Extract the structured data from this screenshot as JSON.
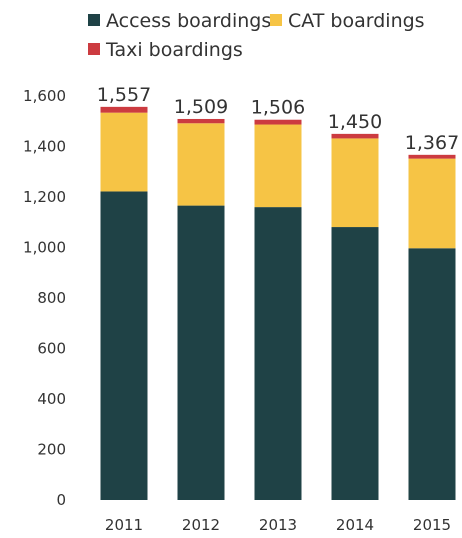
{
  "chart_data": {
    "type": "bar",
    "stacked": true,
    "title": "",
    "xlabel": "",
    "ylabel": "",
    "categories": [
      "2011",
      "2012",
      "2013",
      "2014",
      "2015"
    ],
    "series": [
      {
        "name": "Access boardings",
        "color": "#1f4246",
        "values": [
          1222,
          1166,
          1160,
          1081,
          997
        ]
      },
      {
        "name": "CAT boardings",
        "color": "#f6c445",
        "values": [
          312,
          326,
          327,
          351,
          355
        ]
      },
      {
        "name": "Taxi boardings",
        "color": "#cc3b40",
        "values": [
          23,
          17,
          19,
          18,
          15
        ]
      }
    ],
    "totals": [
      "1,557",
      "1,509",
      "1,506",
      "1,450",
      "1,367"
    ],
    "ylim": [
      0,
      1600
    ],
    "yticks": [
      "0",
      "200",
      "400",
      "600",
      "800",
      "1,000",
      "1,200",
      "1,400",
      "1,600"
    ],
    "grid": false,
    "legend_position": "top-left"
  }
}
